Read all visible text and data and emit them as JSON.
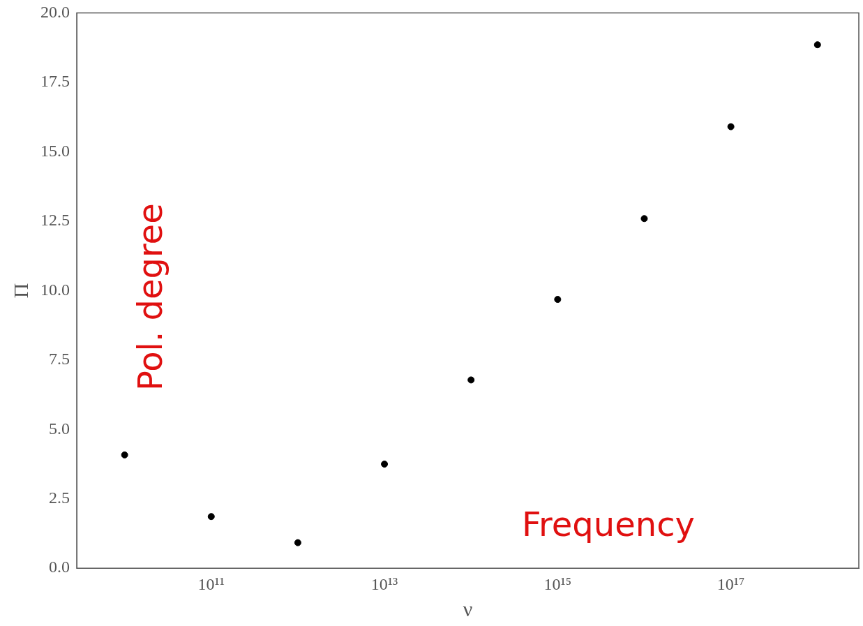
{
  "chart_data": {
    "type": "scatter",
    "xlabel": "ν",
    "ylabel": "Π",
    "x": [
      10000000000.0,
      100000000000.0,
      1000000000000.0,
      10000000000000.0,
      100000000000000.0,
      1000000000000000.0,
      1e+16,
      1e+17,
      1e+18
    ],
    "series": [
      {
        "color": "#000000",
        "values": [
          4.08,
          1.86,
          0.92,
          3.75,
          6.78,
          9.68,
          12.59,
          15.9,
          18.85
        ]
      }
    ],
    "log": "x",
    "xlim": [
      2800000000.0,
      3e+18
    ],
    "xticks": [
      {
        "value": 100000000000.0,
        "label": "10¹¹"
      },
      {
        "value": 10000000000000.0,
        "label": "10¹³"
      },
      {
        "value": 1000000000000000.0,
        "label": "10¹⁵"
      },
      {
        "value": 1e+17,
        "label": "10¹⁷"
      }
    ],
    "ylim": [
      0,
      20
    ],
    "yticks": [
      {
        "value": 0,
        "label": "0.0"
      },
      {
        "value": 2.5,
        "label": "2.5"
      },
      {
        "value": 5,
        "label": "5.0"
      },
      {
        "value": 7.5,
        "label": "7.5"
      },
      {
        "value": 10,
        "label": "10.0"
      },
      {
        "value": 12.5,
        "label": "12.5"
      },
      {
        "value": 15,
        "label": "15.0"
      },
      {
        "value": 17.5,
        "label": "17.5"
      },
      {
        "value": 20,
        "label": "20.0"
      }
    ],
    "grid": false,
    "legend": false,
    "marker": "circle",
    "annotations": [
      "Pol. degree",
      "Frequency"
    ]
  }
}
